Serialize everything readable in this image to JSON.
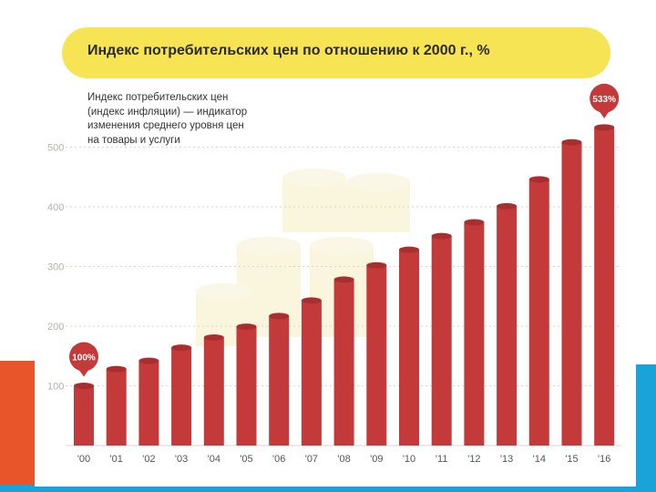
{
  "colors": {
    "bar": "#c43a3a",
    "bar_top": "#a82f2f",
    "title_bg": "#f6e455",
    "grid": "#d9d6cf",
    "tick_text": "#b5b2aa",
    "accent_orange": "#e8552a",
    "accent_blue": "#1aa3d9"
  },
  "chart_data": {
    "type": "bar",
    "title": "Индекс потребительских цен по отношению к 2000 г., %",
    "description": "Индекс потребительских цен\n(индекс инфляции) — индикатор\nизменения среднего уровня цен\nна товары и услуги",
    "categories": [
      "'00",
      "'01",
      "'02",
      "'03",
      "'04",
      "'05",
      "'06",
      "'07",
      "'08",
      "'09",
      "'10",
      "'11",
      "'12",
      "'13",
      "'14",
      "'15",
      "'16"
    ],
    "values": [
      100,
      128,
      142,
      164,
      181,
      199,
      217,
      243,
      278,
      302,
      328,
      351,
      374,
      401,
      446,
      508,
      533
    ],
    "y_ticks": [
      "100",
      "200",
      "300",
      "400",
      "500"
    ],
    "ylim": [
      0,
      600
    ],
    "grid": true,
    "annotations": [
      {
        "category_index": 0,
        "text": "100%"
      },
      {
        "category_index": 16,
        "text": "533%"
      }
    ]
  }
}
